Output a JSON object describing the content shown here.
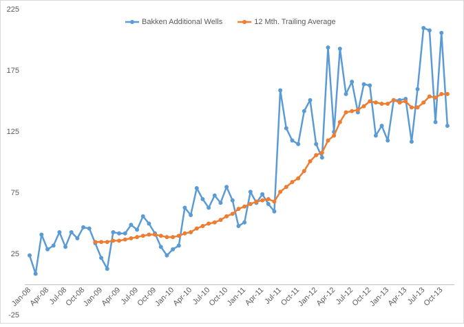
{
  "chart_data": {
    "type": "line",
    "categories": [
      "Jan-08",
      null,
      null,
      "Apr-08",
      null,
      null,
      "Jul-08",
      null,
      null,
      "Oct-08",
      null,
      null,
      "Jan-09",
      null,
      null,
      "Apr-09",
      null,
      null,
      "Jul-09",
      null,
      null,
      "Oct-09",
      null,
      null,
      "Jan-10",
      null,
      null,
      "Apr-10",
      null,
      null,
      "Jul-10",
      null,
      null,
      "Oct-10",
      null,
      null,
      "Jan-11",
      null,
      null,
      "Apr-11",
      null,
      null,
      "Jul-11",
      null,
      null,
      "Oct-11",
      null,
      null,
      "Jan-12",
      null,
      null,
      "Apr-12",
      null,
      null,
      "Jul-12",
      null,
      null,
      "Oct-12",
      null,
      null,
      "Jan-13",
      null,
      null,
      "Apr-13",
      null,
      null,
      "Jul-13",
      null,
      null,
      "Oct-13",
      null
    ],
    "series": [
      {
        "name": "Bakken Additional Wells",
        "color": "#5b9bd5",
        "values": [
          24,
          9,
          41,
          29,
          32,
          43,
          31,
          43,
          38,
          47,
          46,
          34,
          22,
          13,
          43,
          42,
          42,
          49,
          45,
          56,
          50,
          42,
          31,
          24,
          29,
          32,
          63,
          57,
          79,
          70,
          63,
          73,
          67,
          80,
          69,
          48,
          51,
          76,
          67,
          74,
          66,
          60,
          159,
          128,
          118,
          115,
          142,
          151,
          115,
          104,
          194,
          125,
          193,
          156,
          166,
          141,
          164,
          163,
          122,
          130,
          118,
          151,
          151,
          152,
          117,
          160,
          210,
          208,
          133,
          206,
          130
        ]
      },
      {
        "name": "12 Mth. Trailing Average",
        "color": "#ed7d31",
        "values": [
          null,
          null,
          null,
          null,
          null,
          null,
          null,
          null,
          null,
          null,
          null,
          35,
          35,
          35,
          36,
          36,
          37,
          38,
          39,
          40,
          41,
          41,
          40,
          39,
          39,
          40,
          42,
          43,
          46,
          48,
          50,
          51,
          53,
          56,
          58,
          62,
          64,
          66,
          68,
          69,
          70,
          68,
          76,
          80,
          84,
          87,
          93,
          101,
          106,
          108,
          118,
          122,
          133,
          141,
          142,
          143,
          146,
          150,
          149,
          148,
          148,
          151,
          149,
          150,
          145,
          145,
          149,
          154,
          153,
          156,
          156
        ]
      }
    ],
    "ylim": [
      -25,
      225
    ],
    "yticks": [
      -25,
      25,
      75,
      125,
      175,
      225
    ],
    "grid": false,
    "legend": "top"
  }
}
